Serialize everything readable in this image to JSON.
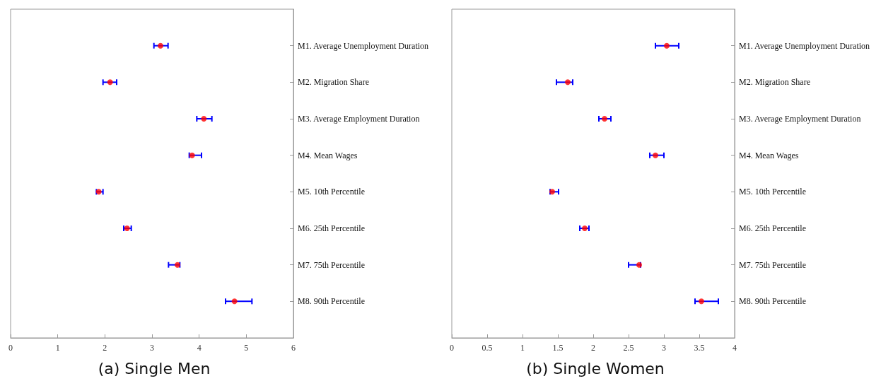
{
  "chart_data": [
    {
      "type": "scatter",
      "orientation": "horizontal",
      "title": "(a) Single Men",
      "categories": [
        "M1. Average Unemployment Duration",
        "M2. Migration Share",
        "M3. Average Employment Duration",
        "M4. Mean Wages",
        "M5. 10th Percentile",
        "M6. 25th Percentile",
        "M7. 75th Percentile",
        "M8. 90th Percentile"
      ],
      "series": [
        {
          "color": "#ff0000",
          "values": [
            3.18,
            2.11,
            4.1,
            3.85,
            1.87,
            2.47,
            3.54,
            4.75
          ],
          "errors": [
            [
              3.04,
              3.34
            ],
            [
              1.96,
              2.25
            ],
            [
              3.95,
              4.27
            ],
            [
              3.79,
              4.05
            ],
            [
              1.82,
              1.96
            ],
            [
              2.4,
              2.56
            ],
            [
              3.35,
              3.59
            ],
            [
              4.56,
              5.12
            ]
          ]
        }
      ],
      "xlim": [
        0,
        6
      ],
      "xticks": [
        0,
        1,
        2,
        3,
        4,
        5,
        6
      ],
      "marker": "circle",
      "grid": false,
      "legend": false
    },
    {
      "type": "scatter",
      "orientation": "horizontal",
      "title": "(b) Single Women",
      "categories": [
        "M1. Average Unemployment Duration",
        "M2. Migration Share",
        "M3. Average Employment Duration",
        "M4. Mean Wages",
        "M5. 10th Percentile",
        "M6. 25th Percentile",
        "M7. 75th Percentile",
        "M8. 90th Percentile"
      ],
      "series": [
        {
          "color": "#ff0000",
          "values": [
            3.04,
            1.64,
            2.16,
            2.88,
            1.42,
            1.88,
            2.65,
            3.53
          ],
          "errors": [
            [
              2.88,
              3.21
            ],
            [
              1.48,
              1.71
            ],
            [
              2.08,
              2.25
            ],
            [
              2.8,
              3.0
            ],
            [
              1.39,
              1.51
            ],
            [
              1.81,
              1.94
            ],
            [
              2.5,
              2.67
            ],
            [
              3.44,
              3.77
            ]
          ]
        }
      ],
      "xlim": [
        0,
        4
      ],
      "xticks": [
        0,
        0.5,
        1,
        1.5,
        2,
        2.5,
        3,
        3.5,
        4
      ],
      "marker": "circle",
      "grid": false,
      "legend": false
    }
  ]
}
